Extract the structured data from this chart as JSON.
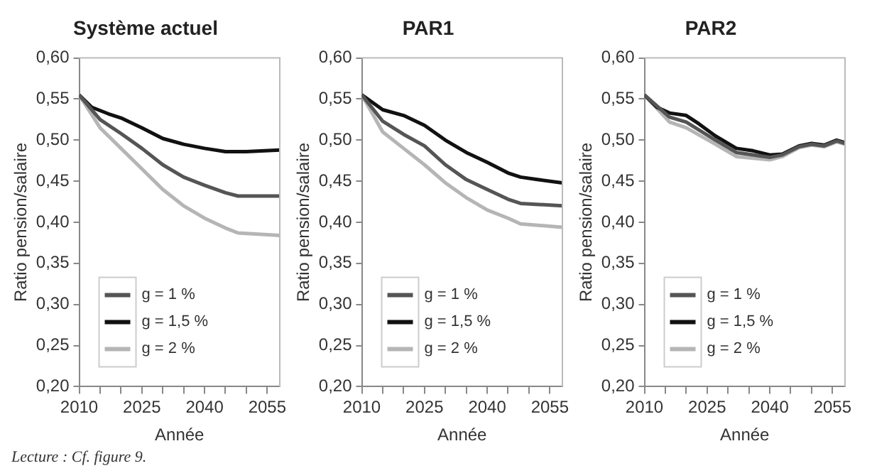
{
  "chart_data": [
    {
      "type": "line",
      "title": "Système actuel",
      "xlabel": "Année",
      "ylabel": "Ratio pension/salaire",
      "xlim": [
        2010,
        2058
      ],
      "ylim": [
        0.2,
        0.6
      ],
      "xticks": [
        2010,
        {
          "value": 2015,
          "label": null
        },
        {
          "value": 2020,
          "label": null
        },
        2025,
        {
          "value": 2030,
          "label": null
        },
        {
          "value": 2035,
          "label": null
        },
        2040,
        {
          "value": 2045,
          "label": null
        },
        {
          "value": 2050,
          "label": null
        },
        2055
      ],
      "yticks": [
        {
          "value": 0.2,
          "label": "0,20"
        },
        {
          "value": 0.25,
          "label": "0,25"
        },
        {
          "value": 0.3,
          "label": "0,30"
        },
        {
          "value": 0.35,
          "label": "0,35"
        },
        {
          "value": 0.4,
          "label": "0,40"
        },
        {
          "value": 0.45,
          "label": "0,45"
        },
        {
          "value": 0.5,
          "label": "0,50"
        },
        {
          "value": 0.55,
          "label": "0,55"
        },
        {
          "value": 0.6,
          "label": "0,60"
        }
      ],
      "grid": false,
      "legend": "bottom left",
      "marker": "none",
      "line_style": "solid",
      "annotations": [
        "Lecture : Cf. figure 9."
      ],
      "series": [
        {
          "name": "g = 1 %",
          "color": "#555555",
          "x": [
            2010,
            2015,
            2020,
            2025,
            2030,
            2035,
            2040,
            2045,
            2048,
            2058
          ],
          "values": [
            0.555,
            0.525,
            0.508,
            0.49,
            0.47,
            0.455,
            0.445,
            0.436,
            0.432,
            0.432
          ]
        },
        {
          "name": "g = 1,5 %",
          "color": "#111111",
          "x": [
            2010,
            2013,
            2017,
            2020,
            2025,
            2030,
            2035,
            2040,
            2045,
            2050,
            2058
          ],
          "values": [
            0.555,
            0.54,
            0.532,
            0.527,
            0.515,
            0.502,
            0.495,
            0.49,
            0.486,
            0.486,
            0.488
          ]
        },
        {
          "name": "g = 2 %",
          "color": "#b5b5b5",
          "x": [
            2010,
            2015,
            2020,
            2025,
            2030,
            2035,
            2040,
            2045,
            2048,
            2058
          ],
          "values": [
            0.555,
            0.515,
            0.49,
            0.465,
            0.44,
            0.42,
            0.405,
            0.393,
            0.387,
            0.384
          ]
        }
      ]
    },
    {
      "type": "line",
      "title": "PAR1",
      "xlabel": "Année",
      "ylabel": "Ratio pension/salaire",
      "xlim": [
        2010,
        2058
      ],
      "ylim": [
        0.2,
        0.6
      ],
      "xticks": [
        2010,
        {
          "value": 2015,
          "label": null
        },
        {
          "value": 2020,
          "label": null
        },
        2025,
        {
          "value": 2030,
          "label": null
        },
        {
          "value": 2035,
          "label": null
        },
        2040,
        {
          "value": 2045,
          "label": null
        },
        {
          "value": 2050,
          "label": null
        },
        2055
      ],
      "yticks": [
        {
          "value": 0.2,
          "label": "0,20"
        },
        {
          "value": 0.25,
          "label": "0,25"
        },
        {
          "value": 0.3,
          "label": "0,30"
        },
        {
          "value": 0.35,
          "label": "0,35"
        },
        {
          "value": 0.4,
          "label": "0,40"
        },
        {
          "value": 0.45,
          "label": "0,45"
        },
        {
          "value": 0.5,
          "label": "0,50"
        },
        {
          "value": 0.55,
          "label": "0,55"
        },
        {
          "value": 0.6,
          "label": "0,60"
        }
      ],
      "grid": false,
      "legend": "bottom left",
      "marker": "none",
      "line_style": "solid",
      "series": [
        {
          "name": "g = 1 %",
          "color": "#555555",
          "x": [
            2010,
            2015,
            2020,
            2025,
            2030,
            2035,
            2040,
            2045,
            2048,
            2058
          ],
          "values": [
            0.555,
            0.523,
            0.507,
            0.493,
            0.47,
            0.452,
            0.44,
            0.428,
            0.423,
            0.42
          ]
        },
        {
          "name": "g = 1,5 %",
          "color": "#111111",
          "x": [
            2010,
            2015,
            2020,
            2025,
            2030,
            2035,
            2040,
            2045,
            2048,
            2052,
            2058
          ],
          "values": [
            0.555,
            0.537,
            0.53,
            0.518,
            0.5,
            0.485,
            0.473,
            0.46,
            0.455,
            0.452,
            0.448
          ]
        },
        {
          "name": "g = 2 %",
          "color": "#b5b5b5",
          "x": [
            2010,
            2015,
            2020,
            2025,
            2030,
            2035,
            2040,
            2045,
            2048,
            2058
          ],
          "values": [
            0.555,
            0.51,
            0.49,
            0.47,
            0.448,
            0.43,
            0.415,
            0.405,
            0.398,
            0.394
          ]
        }
      ]
    },
    {
      "type": "line",
      "title": "PAR2",
      "xlabel": "Année",
      "ylabel": "Ratio pension/salaire",
      "xlim": [
        2010,
        2058
      ],
      "ylim": [
        0.2,
        0.6
      ],
      "xticks": [
        2010,
        {
          "value": 2015,
          "label": null
        },
        {
          "value": 2020,
          "label": null
        },
        2025,
        {
          "value": 2030,
          "label": null
        },
        {
          "value": 2035,
          "label": null
        },
        2040,
        {
          "value": 2045,
          "label": null
        },
        {
          "value": 2050,
          "label": null
        },
        2055
      ],
      "yticks": [
        {
          "value": 0.2,
          "label": "0,20"
        },
        {
          "value": 0.25,
          "label": "0,25"
        },
        {
          "value": 0.3,
          "label": "0,30"
        },
        {
          "value": 0.35,
          "label": "0,35"
        },
        {
          "value": 0.4,
          "label": "0,40"
        },
        {
          "value": 0.45,
          "label": "0,45"
        },
        {
          "value": 0.5,
          "label": "0,50"
        },
        {
          "value": 0.55,
          "label": "0,55"
        },
        {
          "value": 0.6,
          "label": "0,60"
        }
      ],
      "grid": false,
      "legend": "bottom left",
      "marker": "none",
      "line_style": "solid",
      "series": [
        {
          "name": "g = 1 %",
          "color": "#555555",
          "x": [
            2010,
            2016,
            2020,
            2027,
            2032,
            2040,
            2043,
            2047,
            2050,
            2053,
            2056,
            2058
          ],
          "values": [
            0.555,
            0.528,
            0.522,
            0.5,
            0.485,
            0.479,
            0.482,
            0.492,
            0.495,
            0.493,
            0.499,
            0.496
          ]
        },
        {
          "name": "g = 1,5 %",
          "color": "#111111",
          "x": [
            2010,
            2013,
            2016,
            2020,
            2023,
            2027,
            2032,
            2036,
            2040,
            2043,
            2047,
            2050,
            2053,
            2056,
            2058
          ],
          "values": [
            0.555,
            0.54,
            0.533,
            0.53,
            0.52,
            0.505,
            0.49,
            0.487,
            0.482,
            0.483,
            0.493,
            0.496,
            0.494,
            0.5,
            0.497
          ]
        },
        {
          "name": "g = 2 %",
          "color": "#b5b5b5",
          "x": [
            2010,
            2016,
            2020,
            2027,
            2032,
            2040,
            2043,
            2047,
            2050,
            2053,
            2056,
            2058
          ],
          "values": [
            0.555,
            0.522,
            0.515,
            0.495,
            0.48,
            0.476,
            0.48,
            0.491,
            0.494,
            0.492,
            0.498,
            0.495
          ]
        }
      ]
    }
  ]
}
